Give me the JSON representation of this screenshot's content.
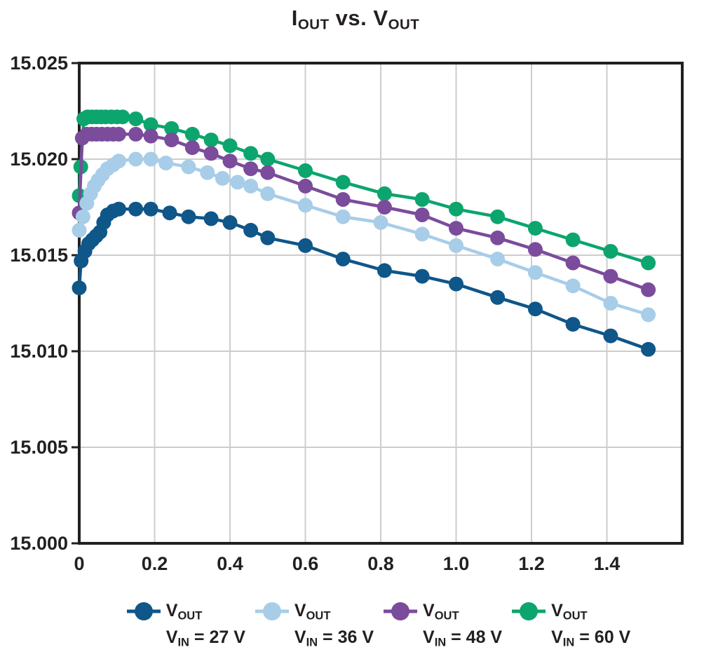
{
  "colors": {
    "background": "#ffffff",
    "grid": "#cdcdcd",
    "axis": "#231f20",
    "text": "#231f20"
  },
  "chart_data": {
    "type": "line",
    "title": "IOUT vs. VOUT",
    "title_segments": [
      {
        "text": "I"
      },
      {
        "sub": "OUT"
      },
      {
        "text": " vs. "
      },
      {
        "text": "V"
      },
      {
        "sub": "OUT"
      }
    ],
    "xlabel": "",
    "ylabel": "",
    "grid": true,
    "legend_position": "bottom",
    "x_axis": {
      "min": 0,
      "max": 1.6,
      "ticks": [
        0,
        0.2,
        0.4,
        0.6,
        0.8,
        1.0,
        1.2,
        1.4
      ],
      "tick_labels": [
        "0",
        "0.2",
        "0.4",
        "0.6",
        "0.8",
        "1.0",
        "1.2",
        "1.4"
      ]
    },
    "y_axis": {
      "min": 15.0,
      "max": 15.025,
      "ticks": [
        15.0,
        15.005,
        15.01,
        15.015,
        15.02,
        15.025
      ],
      "tick_labels": [
        "15.000",
        "15.005",
        "15.010",
        "15.015",
        "15.020",
        "15.025"
      ]
    },
    "series": [
      {
        "name": "VOUT VIN = 27 V",
        "legend_line1": [
          {
            "text": "V"
          },
          {
            "sub": "OUT"
          }
        ],
        "legend_line2": [
          {
            "text": "V"
          },
          {
            "sub": "IN"
          },
          {
            "text": " = 27 V"
          }
        ],
        "color": "#0F5689",
        "points": [
          [
            0,
            15.0133
          ],
          [
            0.005,
            15.0147
          ],
          [
            0.015,
            15.0152
          ],
          [
            0.025,
            15.0156
          ],
          [
            0.035,
            15.0158
          ],
          [
            0.045,
            15.016
          ],
          [
            0.055,
            15.0162
          ],
          [
            0.065,
            15.0167
          ],
          [
            0.075,
            15.0171
          ],
          [
            0.09,
            15.0173
          ],
          [
            0.105,
            15.0174
          ],
          [
            0.15,
            15.0174
          ],
          [
            0.19,
            15.0174
          ],
          [
            0.24,
            15.0172
          ],
          [
            0.29,
            15.017
          ],
          [
            0.35,
            15.0169
          ],
          [
            0.4,
            15.0167
          ],
          [
            0.455,
            15.0163
          ],
          [
            0.5,
            15.0159
          ],
          [
            0.6,
            15.0155
          ],
          [
            0.7,
            15.0148
          ],
          [
            0.81,
            15.0142
          ],
          [
            0.91,
            15.0139
          ],
          [
            1.0,
            15.0135
          ],
          [
            1.11,
            15.0128
          ],
          [
            1.21,
            15.0122
          ],
          [
            1.31,
            15.0114
          ],
          [
            1.41,
            15.0108
          ],
          [
            1.51,
            15.0101
          ]
        ]
      },
      {
        "name": "VOUT VIN = 36 V",
        "legend_line1": [
          {
            "text": "V"
          },
          {
            "sub": "OUT"
          }
        ],
        "legend_line2": [
          {
            "text": "V"
          },
          {
            "sub": "IN"
          },
          {
            "text": " = 36 V"
          }
        ],
        "color": "#A7CDE8",
        "points": [
          [
            0,
            15.0163
          ],
          [
            0.01,
            15.017
          ],
          [
            0.02,
            15.0177
          ],
          [
            0.03,
            15.0182
          ],
          [
            0.04,
            15.0186
          ],
          [
            0.05,
            15.0189
          ],
          [
            0.062,
            15.0192
          ],
          [
            0.075,
            15.0195
          ],
          [
            0.09,
            15.0197
          ],
          [
            0.105,
            15.0199
          ],
          [
            0.15,
            15.02
          ],
          [
            0.19,
            15.02
          ],
          [
            0.23,
            15.0198
          ],
          [
            0.29,
            15.0196
          ],
          [
            0.34,
            15.0193
          ],
          [
            0.38,
            15.019
          ],
          [
            0.42,
            15.0188
          ],
          [
            0.455,
            15.0186
          ],
          [
            0.5,
            15.0182
          ],
          [
            0.6,
            15.0176
          ],
          [
            0.7,
            15.017
          ],
          [
            0.8,
            15.0167
          ],
          [
            0.91,
            15.0161
          ],
          [
            1.0,
            15.0155
          ],
          [
            1.11,
            15.0148
          ],
          [
            1.21,
            15.0141
          ],
          [
            1.31,
            15.0134
          ],
          [
            1.41,
            15.0125
          ],
          [
            1.51,
            15.0119
          ]
        ]
      },
      {
        "name": "VOUT VIN = 48 V",
        "legend_line1": [
          {
            "text": "V"
          },
          {
            "sub": "OUT"
          }
        ],
        "legend_line2": [
          {
            "text": "V"
          },
          {
            "sub": "IN"
          },
          {
            "text": " = 48 V"
          }
        ],
        "color": "#7B4B9C",
        "points": [
          [
            0,
            15.0172
          ],
          [
            0.008,
            15.0211
          ],
          [
            0.02,
            15.0213
          ],
          [
            0.033,
            15.0213
          ],
          [
            0.046,
            15.0213
          ],
          [
            0.06,
            15.0213
          ],
          [
            0.075,
            15.0213
          ],
          [
            0.09,
            15.0213
          ],
          [
            0.105,
            15.0213
          ],
          [
            0.15,
            15.0213
          ],
          [
            0.19,
            15.0212
          ],
          [
            0.245,
            15.021
          ],
          [
            0.3,
            15.0206
          ],
          [
            0.35,
            15.0203
          ],
          [
            0.4,
            15.0199
          ],
          [
            0.455,
            15.0195
          ],
          [
            0.5,
            15.0193
          ],
          [
            0.6,
            15.0186
          ],
          [
            0.7,
            15.0179
          ],
          [
            0.81,
            15.0175
          ],
          [
            0.91,
            15.0171
          ],
          [
            1.0,
            15.0164
          ],
          [
            1.11,
            15.0159
          ],
          [
            1.21,
            15.0153
          ],
          [
            1.31,
            15.0146
          ],
          [
            1.41,
            15.0139
          ],
          [
            1.51,
            15.0132
          ]
        ]
      },
      {
        "name": "VOUT VIN = 60 V",
        "legend_line1": [
          {
            "text": "V"
          },
          {
            "sub": "OUT"
          }
        ],
        "legend_line2": [
          {
            "text": "V"
          },
          {
            "sub": "IN"
          },
          {
            "text": " = 60 V"
          }
        ],
        "color": "#0CA56D",
        "points": [
          [
            0,
            15.0181
          ],
          [
            0.004,
            15.0196
          ],
          [
            0.012,
            15.0221
          ],
          [
            0.022,
            15.0222
          ],
          [
            0.034,
            15.0222
          ],
          [
            0.046,
            15.0222
          ],
          [
            0.058,
            15.0222
          ],
          [
            0.07,
            15.0222
          ],
          [
            0.085,
            15.0222
          ],
          [
            0.1,
            15.0222
          ],
          [
            0.115,
            15.0222
          ],
          [
            0.15,
            15.0221
          ],
          [
            0.19,
            15.0218
          ],
          [
            0.245,
            15.0216
          ],
          [
            0.3,
            15.0213
          ],
          [
            0.35,
            15.021
          ],
          [
            0.4,
            15.0207
          ],
          [
            0.455,
            15.0203
          ],
          [
            0.5,
            15.02
          ],
          [
            0.6,
            15.0194
          ],
          [
            0.7,
            15.0188
          ],
          [
            0.81,
            15.0182
          ],
          [
            0.91,
            15.0179
          ],
          [
            1.0,
            15.0174
          ],
          [
            1.11,
            15.017
          ],
          [
            1.21,
            15.0164
          ],
          [
            1.31,
            15.0158
          ],
          [
            1.41,
            15.0152
          ],
          [
            1.51,
            15.0146
          ]
        ]
      }
    ]
  }
}
